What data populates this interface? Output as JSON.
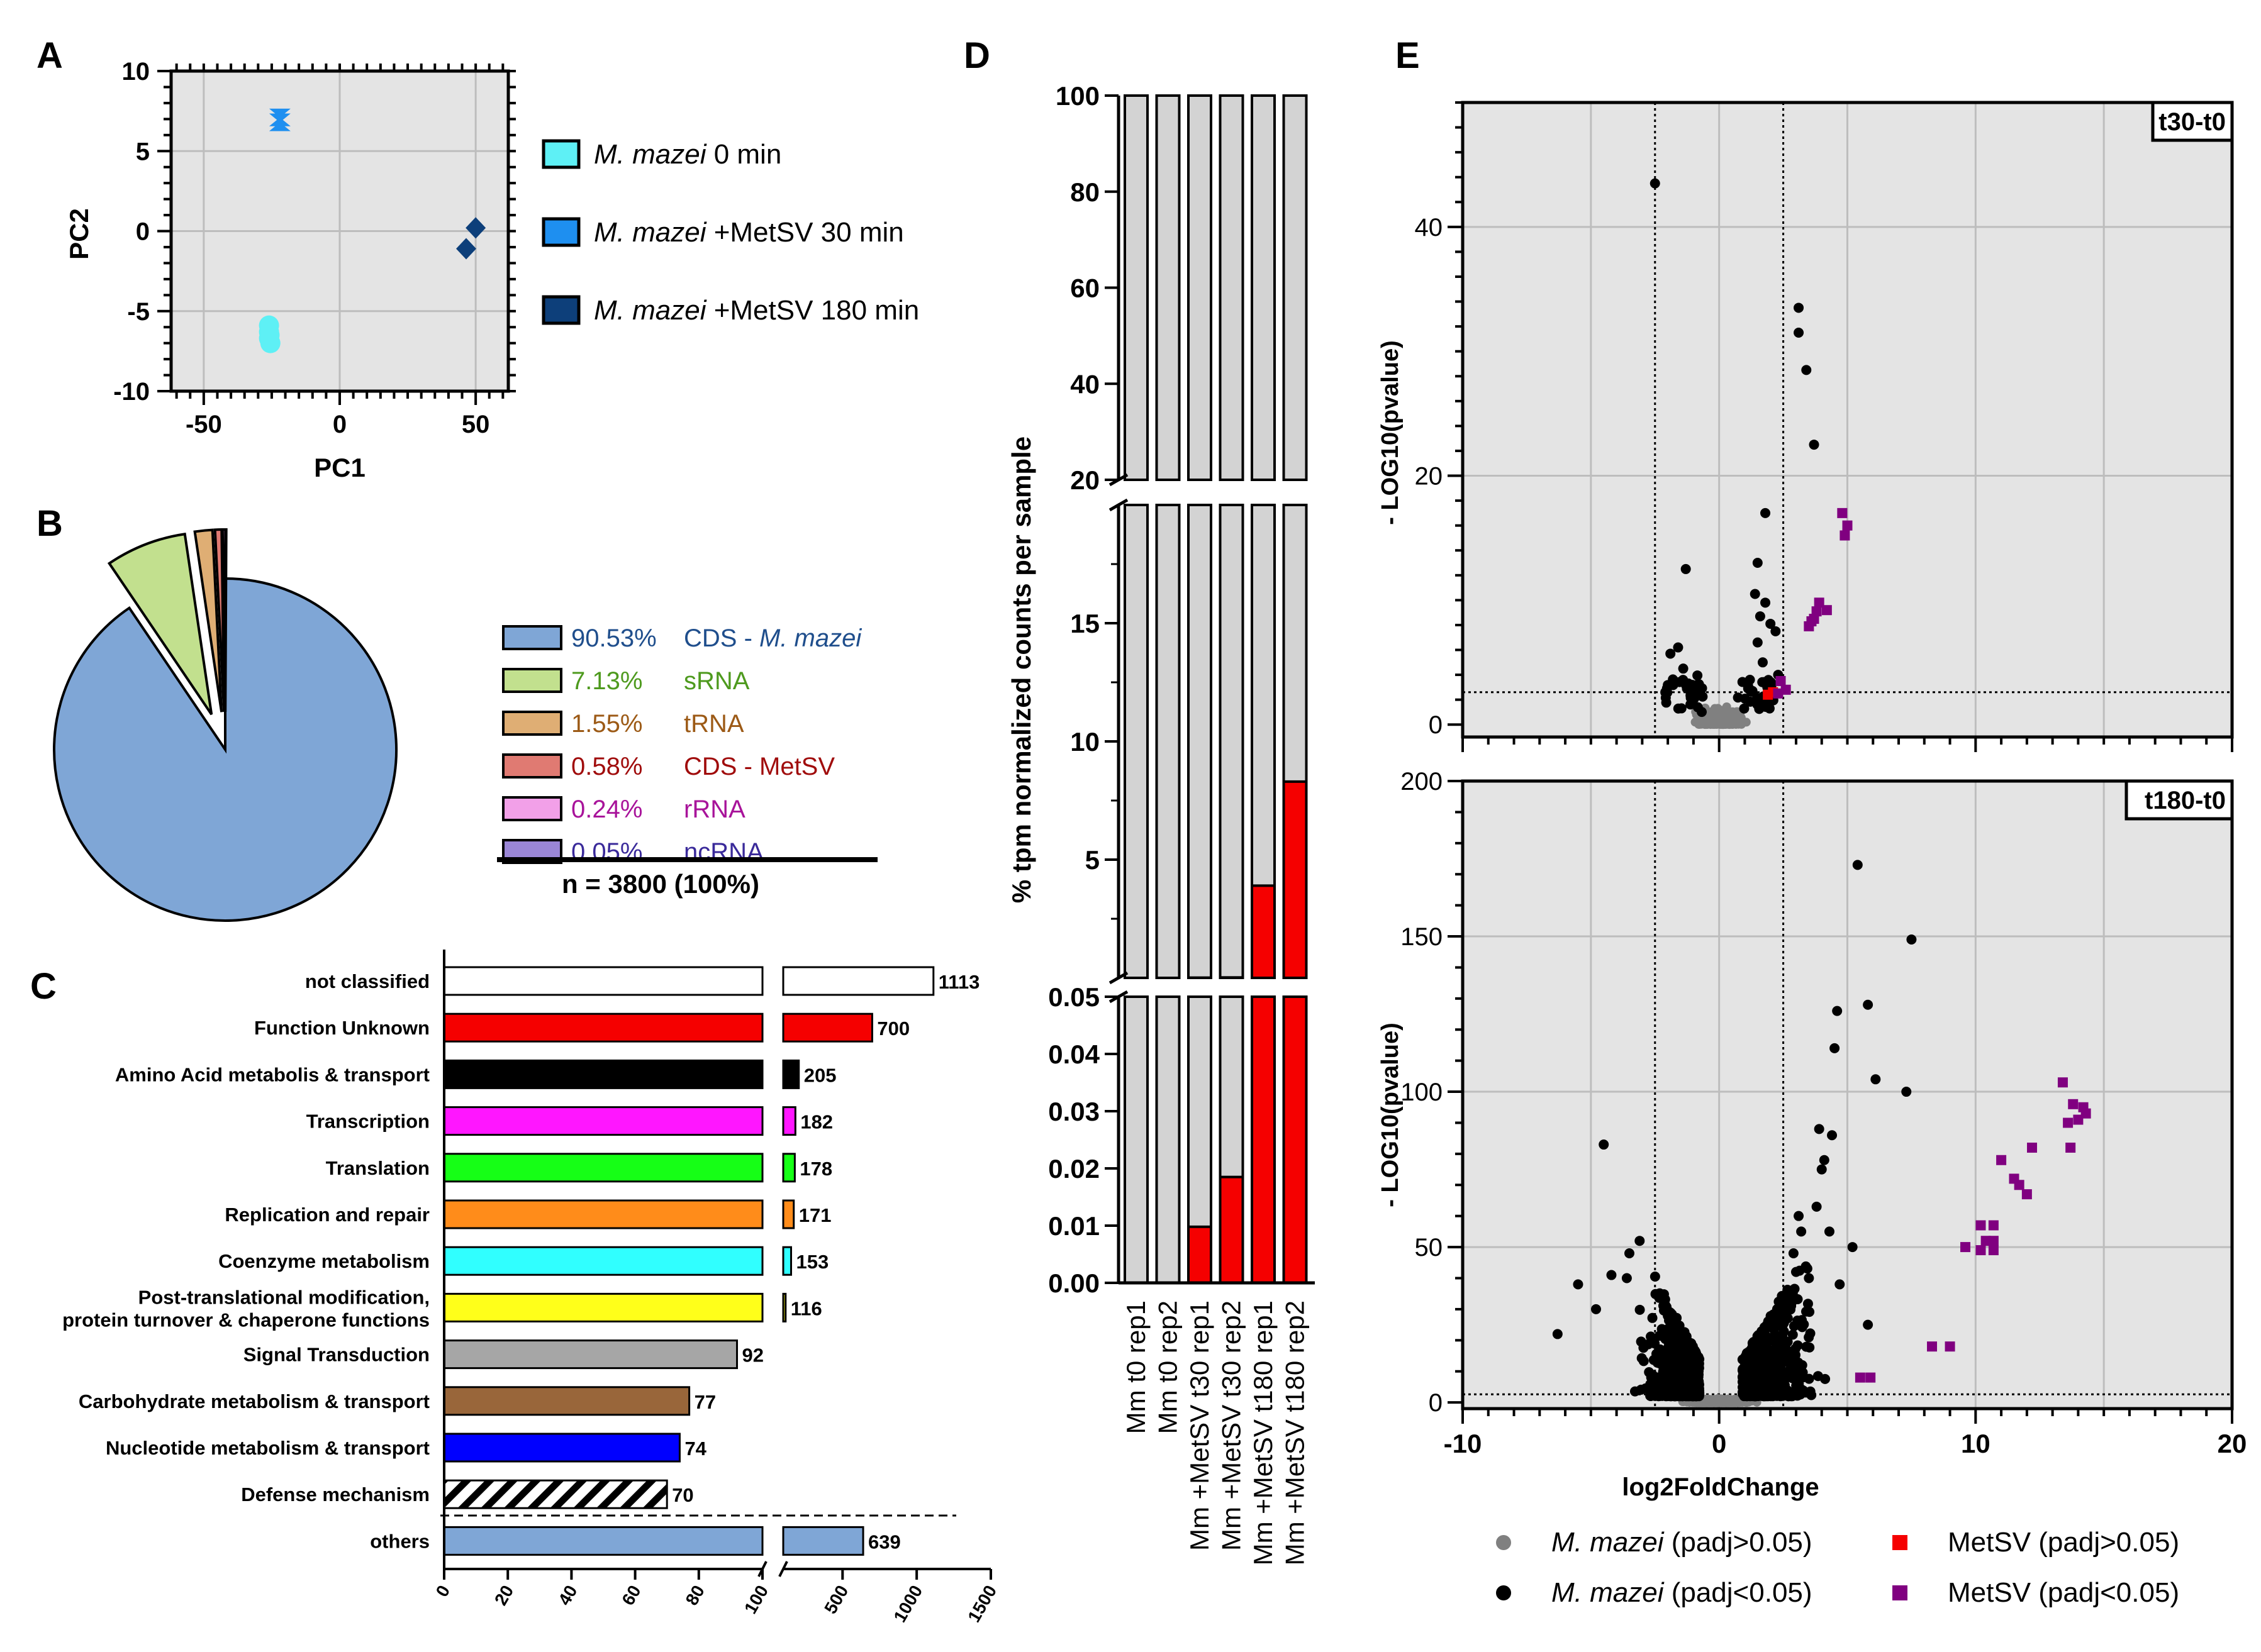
{
  "panels": {
    "A": "A",
    "B": "B",
    "C": "C",
    "D": "D",
    "E": "E"
  },
  "colors": {
    "t0": "#5ef0f5",
    "t30": "#1e8ff0",
    "t180": "#0d3f7a",
    "cds_mm": "#7fa6d6",
    "srna": "#c2e08e",
    "trna": "#dfae74",
    "cds_metsv": "#e07a72",
    "rrna": "#f2a0e8",
    "ncrna": "#9a86d6",
    "grid": "#bdbdbd",
    "panel_bg": "#e4e4e4",
    "red": "#f50000",
    "gray": "#808080",
    "purple": "#800080"
  },
  "chart_data": [
    {
      "id": "A",
      "type": "scatter",
      "xlabel": "PC1",
      "ylabel": "PC2",
      "xlim": [
        -62,
        62
      ],
      "ylim": [
        -10,
        10
      ],
      "xticks": [
        -50,
        0,
        50
      ],
      "yticks": [
        -10,
        -5,
        0,
        5,
        10
      ],
      "series": [
        {
          "name": "M. mazei 0 min",
          "label_italic": "M. mazei",
          "label_rest": " 0 min",
          "color": "#5ef0f5",
          "marker": "circle",
          "points": [
            [
              -26,
              -5.9
            ],
            [
              -26,
              -6.3
            ],
            [
              -26,
              -6.7
            ],
            [
              -25.5,
              -7.0
            ],
            [
              -25.8,
              -6.5
            ]
          ]
        },
        {
          "name": "M. mazei +MetSV 30 min",
          "label_italic": "M. mazei",
          "label_rest": " +MetSV 30 min",
          "color": "#1e8ff0",
          "marker": "hourglass",
          "points": [
            [
              -22,
              7.1
            ],
            [
              -22,
              6.8
            ]
          ]
        },
        {
          "name": "M. mazei +MetSV 180 min",
          "label_italic": "M. mazei",
          "label_rest": "  +MetSV 180 min",
          "color": "#0d3f7a",
          "marker": "diamond",
          "points": [
            [
              50,
              0.2
            ],
            [
              46.5,
              -1.1
            ]
          ]
        }
      ]
    },
    {
      "id": "B",
      "type": "pie",
      "slices": [
        {
          "pct": "90.53%",
          "label": "CDS - ",
          "label_italic": "M. mazei",
          "value": 90.53,
          "color": "#7fa6d6",
          "text_color": "#1f4e8c"
        },
        {
          "pct": "7.13%",
          "label": "sRNA",
          "label_italic": "",
          "value": 7.13,
          "color": "#c2e08e",
          "text_color": "#4e9a1e"
        },
        {
          "pct": "1.55%",
          "label": "tRNA",
          "label_italic": "",
          "value": 1.55,
          "color": "#dfae74",
          "text_color": "#9c5a16"
        },
        {
          "pct": "0.58%",
          "label": "CDS - MetSV",
          "label_italic": "",
          "value": 0.58,
          "color": "#e07a72",
          "text_color": "#a00c0c"
        },
        {
          "pct": "0.24%",
          "label": "rRNA",
          "label_italic": "",
          "value": 0.24,
          "color": "#f2a0e8",
          "text_color": "#a8139a"
        },
        {
          "pct": "0.05%",
          "label": "ncRNA",
          "label_italic": "",
          "value": 0.05,
          "color": "#9a86d6",
          "text_color": "#3a2a9a"
        }
      ],
      "total": "n = 3800 (100%)"
    },
    {
      "id": "C",
      "type": "bar",
      "orientation": "horizontal",
      "categories": [
        {
          "name": "not classified",
          "value": 1113,
          "label": "1113",
          "color": "#ffffff"
        },
        {
          "name": "Function Unknown",
          "value": 700,
          "label": "700",
          "color": "#f50000"
        },
        {
          "name": "Amino Acid metabolis & transport",
          "value": 205,
          "label": "205",
          "color": "#000000"
        },
        {
          "name": "Transcription",
          "value": 182,
          "label": "182",
          "color": "#ff16ff"
        },
        {
          "name": "Translation",
          "value": 178,
          "label": "178",
          "color": "#16ff16"
        },
        {
          "name": "Replication and repair",
          "value": 171,
          "label": "171",
          "color": "#ff8c1a"
        },
        {
          "name": "Coenzyme metabolism",
          "value": 153,
          "label": "153",
          "color": "#30ffff"
        },
        {
          "name": "Post-translational modification,",
          "name2": "protein turnover & chaperone functions",
          "value": 116,
          "label": "116",
          "color": "#ffff1a"
        },
        {
          "name": "Signal Transduction",
          "value": 92,
          "label": "92",
          "color": "#a6a6a6"
        },
        {
          "name": "Carbohydrate metabolism & transport",
          "value": 77,
          "label": "77",
          "color": "#99663a"
        },
        {
          "name": "Nucleotide metabolism & transport",
          "value": 74,
          "label": "74",
          "color": "#0000ff"
        },
        {
          "name": "Defense mechanism",
          "value": 70,
          "label": "70",
          "color": "hatch"
        },
        {
          "name": "others",
          "value": 639,
          "label": "639",
          "color": "#7fa6d6"
        }
      ],
      "axis_segment1": [
        0,
        100
      ],
      "axis_segment2": [
        100,
        1500
      ],
      "ticks1": [
        "0",
        "20",
        "40",
        "60",
        "80",
        "100"
      ],
      "ticks2": [
        "500",
        "1000",
        "1500"
      ]
    },
    {
      "id": "D",
      "type": "bar",
      "stacked": true,
      "ylabel": "% tpm normalized counts per sample",
      "categories": [
        "Mm t0 rep1",
        "Mm t0 rep2",
        "Mm +MetSV t30 rep1",
        "Mm +MetSV t30 rep2",
        "Mm +MetSV t180 rep1",
        "Mm +MetSV t180 rep2"
      ],
      "series": [
        {
          "name": "MetSV",
          "color": "#f50000",
          "values": [
            0,
            0,
            0.0098,
            0.0185,
            3.9,
            8.3
          ]
        },
        {
          "name": "M. mazei",
          "color": "#d3d3d3",
          "values": [
            100,
            100,
            99.9902,
            99.9815,
            96.1,
            91.7
          ]
        }
      ],
      "segments": [
        {
          "range": [
            0,
            0.05
          ],
          "ticks": [
            "0.00",
            "0.01",
            "0.02",
            "0.03",
            "0.04",
            "0.05"
          ]
        },
        {
          "range": [
            0,
            20
          ],
          "ticks": [
            "5",
            "10",
            "15"
          ]
        },
        {
          "range": [
            20,
            100
          ],
          "ticks": [
            "20",
            "40",
            "60",
            "80",
            "100"
          ]
        }
      ]
    },
    {
      "id": "E",
      "type": "scatter",
      "xlabel": "log2FoldChange",
      "ylabel": "- LOG10(pvalue)",
      "xlim": [
        -10,
        20
      ],
      "xticks": [
        "-10",
        "0",
        "10",
        "20"
      ],
      "thresholds": {
        "log2fc": [
          -2.5,
          2.5
        ],
        "pvalue_line": "dotted"
      },
      "subplots": [
        {
          "title": "t30-t0",
          "ylim": [
            -1,
            50
          ],
          "yticks": [
            "0",
            "20",
            "40"
          ],
          "series": [
            {
              "name": "M. mazei (padj>0.05)",
              "color": "#808080",
              "marker": "circle"
            },
            {
              "name": "M. mazei (padj<0.05)",
              "color": "#000000",
              "marker": "circle",
              "points": [
                [
                  -2.5,
                  43.5
                ],
                [
                  3.1,
                  33.5
                ],
                [
                  3.1,
                  31.5
                ],
                [
                  3.4,
                  28.5
                ],
                [
                  3.7,
                  22.5
                ],
                [
                  1.8,
                  17
                ],
                [
                  1.5,
                  13
                ],
                [
                  -1.3,
                  12.5
                ],
                [
                  1.4,
                  10.5
                ],
                [
                  1.8,
                  9.8
                ],
                [
                  1.6,
                  8.7
                ],
                [
                  2.0,
                  8.1
                ],
                [
                  2.2,
                  7.5
                ],
                [
                  1.5,
                  6.6
                ],
                [
                  -1.6,
                  6.2
                ],
                [
                  -1.9,
                  5.7
                ],
                [
                  1.7,
                  5.0
                ],
                [
                  -1.4,
                  4.5
                ],
                [
                  2.3,
                  4.0
                ],
                [
                  1.2,
                  3.6
                ],
                [
                  -1.2,
                  3.3
                ],
                [
                  2.0,
                  3.1
                ],
                [
                  -0.9,
                  2.9
                ],
                [
                  1.3,
                  2.7
                ]
              ]
            },
            {
              "name": "MetSV (padj>0.05)",
              "color": "#f50000",
              "marker": "square",
              "points": [
                [
                  1.9,
                  2.4
                ],
                [
                  2.1,
                  2.6
                ]
              ]
            },
            {
              "name": "MetSV (padj<0.05)",
              "color": "#800080",
              "marker": "square",
              "points": [
                [
                  4.8,
                  17
                ],
                [
                  5.0,
                  16
                ],
                [
                  4.9,
                  15.2
                ],
                [
                  3.9,
                  9.8
                ],
                [
                  4.2,
                  9.2
                ],
                [
                  3.8,
                  9.1
                ],
                [
                  3.7,
                  8.5
                ],
                [
                  3.5,
                  7.9
                ],
                [
                  3.6,
                  8.3
                ],
                [
                  2.4,
                  3.5
                ],
                [
                  2.6,
                  2.8
                ],
                [
                  2.3,
                  2.5
                ]
              ]
            }
          ]
        },
        {
          "title": "t180-t0",
          "ylim": [
            -2,
            200
          ],
          "yticks": [
            "0",
            "50",
            "100",
            "150",
            "200"
          ],
          "series": [
            {
              "name": "M. mazei (padj>0.05)",
              "color": "#808080",
              "marker": "circle"
            },
            {
              "name": "M. mazei (padj<0.05)",
              "color": "#000000",
              "marker": "circle",
              "points": [
                [
                  5.4,
                  173
                ],
                [
                  7.5,
                  149
                ],
                [
                  5.8,
                  128
                ],
                [
                  4.6,
                  126
                ],
                [
                  6.1,
                  104
                ],
                [
                  4.5,
                  114
                ],
                [
                  7.3,
                  100
                ],
                [
                  -4.5,
                  83
                ],
                [
                  3.9,
                  88
                ],
                [
                  4.4,
                  86
                ],
                [
                  4.0,
                  75
                ],
                [
                  3.8,
                  63
                ],
                [
                  4.3,
                  55
                ],
                [
                  5.2,
                  50
                ],
                [
                  -3.1,
                  52
                ],
                [
                  -3.5,
                  48
                ],
                [
                  -4.2,
                  41
                ],
                [
                  -5.5,
                  38
                ],
                [
                  -6.3,
                  22
                ],
                [
                  -4.8,
                  30
                ],
                [
                  -3.6,
                  40
                ],
                [
                  3.0,
                  42
                ],
                [
                  3.5,
                  40
                ],
                [
                  2.8,
                  35
                ],
                [
                  5.8,
                  25
                ],
                [
                  4.7,
                  38
                ],
                [
                  2.9,
                  48
                ],
                [
                  3.2,
                  55
                ],
                [
                  3.1,
                  60
                ],
                [
                  4.1,
                  78
                ]
              ]
            },
            {
              "name": "MetSV (padj>0.05)",
              "color": "#f50000",
              "marker": "square"
            },
            {
              "name": "MetSV (padj<0.05)",
              "color": "#800080",
              "marker": "square",
              "points": [
                [
                  13.4,
                  103
                ],
                [
                  13.8,
                  96
                ],
                [
                  14.2,
                  95
                ],
                [
                  14.0,
                  91
                ],
                [
                  13.6,
                  90
                ],
                [
                  14.3,
                  93
                ],
                [
                  12.2,
                  82
                ],
                [
                  13.7,
                  82
                ],
                [
                  11.0,
                  78
                ],
                [
                  11.5,
                  72
                ],
                [
                  11.7,
                  70
                ],
                [
                  12.0,
                  67
                ],
                [
                  10.2,
                  57
                ],
                [
                  10.7,
                  57
                ],
                [
                  10.4,
                  52
                ],
                [
                  10.7,
                  52
                ],
                [
                  9.6,
                  50
                ],
                [
                  10.2,
                  49
                ],
                [
                  10.7,
                  49
                ],
                [
                  8.3,
                  18
                ],
                [
                  9.0,
                  18
                ],
                [
                  5.5,
                  8
                ],
                [
                  5.9,
                  8
                ]
              ]
            }
          ]
        }
      ],
      "legend": [
        {
          "italic": "M. mazei",
          "rest": " (padj>0.05)",
          "color": "#808080",
          "marker": "circle"
        },
        {
          "italic": "",
          "rest": "MetSV (padj>0.05)",
          "color": "#f50000",
          "marker": "square"
        },
        {
          "italic": "M. mazei",
          "rest": " (padj<0.05)",
          "color": "#000000",
          "marker": "circle"
        },
        {
          "italic": "",
          "rest": "MetSV (padj<0.05)",
          "color": "#800080",
          "marker": "square"
        }
      ]
    }
  ]
}
